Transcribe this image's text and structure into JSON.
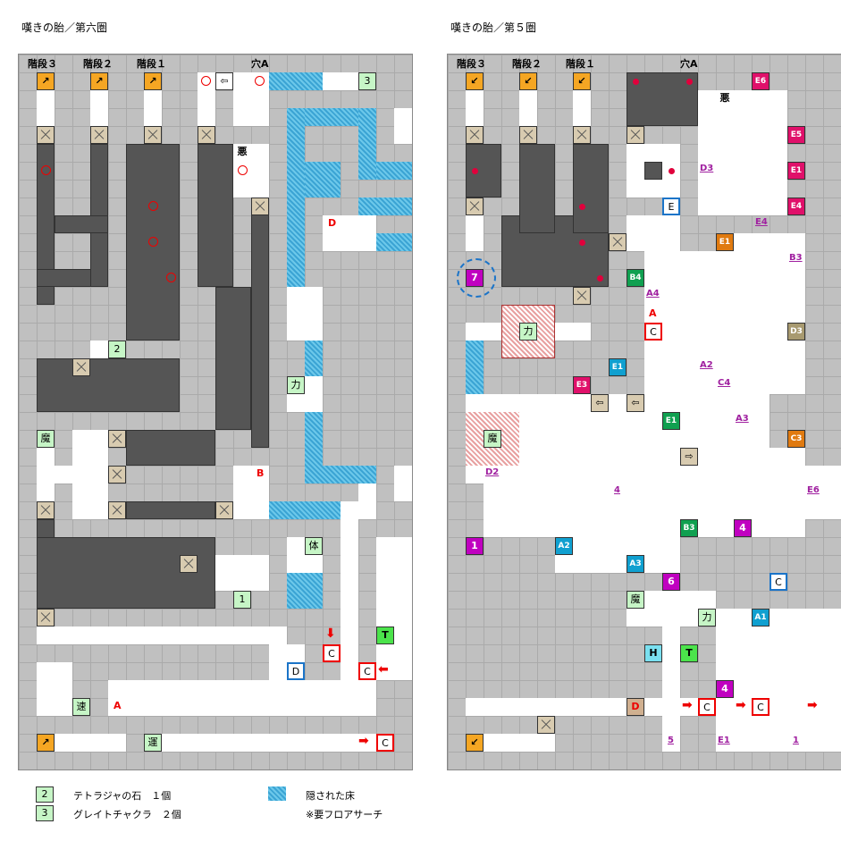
{
  "maps": [
    {
      "title": "嘆きの胎／第六圏",
      "headers": [
        "階段３",
        "階段２",
        "階段１",
        "穴A"
      ],
      "markers": {
        "ma": "魔",
        "chikara": "力",
        "aku": "悪",
        "tai": "体",
        "soku": "速",
        "un": "運",
        "c": "C",
        "d": "D",
        "a": "A",
        "b": "B",
        "t": "T",
        "n1": "1",
        "n2": "2",
        "n3": "3"
      }
    },
    {
      "title": "嘆きの胎／第５圏",
      "headers": [
        "階段３",
        "階段２",
        "階段１",
        "穴A"
      ],
      "markers": {
        "ma": "魔",
        "chikara": "力",
        "aku": "悪",
        "c": "C",
        "d": "D",
        "a": "A",
        "e": "E",
        "h": "H",
        "t": "T",
        "n7": "7",
        "n6": "6",
        "n4": "4",
        "n1": "1",
        "e1": "E1",
        "e3": "E3",
        "e4": "E4",
        "e5": "E5",
        "e6": "E6",
        "b3": "B3",
        "b4": "B4",
        "a1": "A1",
        "a2": "A2",
        "a3": "A3",
        "a4": "A4",
        "c3": "C3",
        "c4": "C4",
        "d2": "D2",
        "d3": "D3",
        "u4": "4",
        "u5": "5",
        "u1": "1"
      }
    }
  ],
  "legend": [
    {
      "icon": "2",
      "text": "テトラジャの石　１個"
    },
    {
      "icon": "3",
      "text": "グレイトチャクラ　２個"
    },
    {
      "text": "隠された床"
    },
    {
      "text": "※要フロアサーチ"
    }
  ],
  "colors": {
    "wall": "#c0c0c0",
    "floor": "#ffffff",
    "dark": "#555555",
    "hidden": "#4fb8e0",
    "stair": "#f5a623",
    "red": "#e00000",
    "blue": "#1b74c8"
  }
}
